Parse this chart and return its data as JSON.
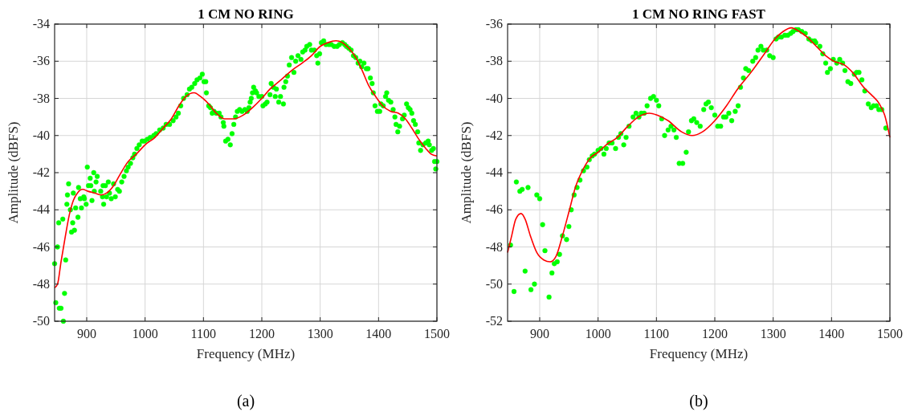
{
  "chart_data": [
    {
      "type": "scatter",
      "title": "1 CM NO RING",
      "xlabel": "Frequency (MHz)",
      "ylabel": "Amplitude (dBFS)",
      "annotations": [
        "(a)"
      ],
      "xlim": [
        845,
        1500
      ],
      "ylim": [
        -50,
        -34
      ],
      "xticks": [
        900,
        1000,
        1100,
        1200,
        1300,
        1400,
        1500
      ],
      "yticks": [
        -50,
        -48,
        -46,
        -44,
        -42,
        -40,
        -38,
        -36,
        -34
      ],
      "grid": true,
      "series": [
        {
          "type": "scatter",
          "marker": "circle",
          "color": "#00ff00",
          "x": [
            845,
            847,
            850,
            852,
            853,
            856,
            859,
            860,
            862,
            864,
            866,
            867,
            869,
            872,
            874,
            876,
            877,
            879,
            881,
            885,
            886,
            889,
            891,
            895,
            896,
            899,
            901,
            903,
            906,
            907,
            909,
            912,
            913,
            916,
            918,
            924,
            927,
            928,
            929,
            932,
            934,
            937,
            939,
            942,
            946,
            949,
            953,
            956,
            960,
            964,
            968,
            971,
            975,
            979,
            982,
            986,
            990,
            995,
            999,
            1004,
            1009,
            1015,
            1019,
            1025,
            1031,
            1036,
            1042,
            1048,
            1053,
            1057,
            1061,
            1066,
            1072,
            1076,
            1080,
            1085,
            1089,
            1094,
            1098,
            1101,
            1104,
            1105,
            1109,
            1112,
            1115,
            1118,
            1122,
            1127,
            1130,
            1134,
            1135,
            1138,
            1142,
            1146,
            1149,
            1152,
            1155,
            1158,
            1162,
            1166,
            1171,
            1175,
            1178,
            1180,
            1182,
            1184,
            1186,
            1189,
            1191,
            1195,
            1200,
            1202,
            1206,
            1209,
            1214,
            1216,
            1220,
            1223,
            1225,
            1229,
            1232,
            1237,
            1238,
            1241,
            1244,
            1247,
            1251,
            1255,
            1258,
            1262,
            1267,
            1270,
            1274,
            1277,
            1282,
            1285,
            1290,
            1294,
            1296,
            1299,
            1302,
            1306,
            1310,
            1315,
            1319,
            1324,
            1329,
            1333,
            1338,
            1342,
            1345,
            1349,
            1353,
            1357,
            1361,
            1365,
            1368,
            1371,
            1375,
            1379,
            1382,
            1386,
            1389,
            1391,
            1394,
            1398,
            1402,
            1404,
            1408,
            1412,
            1414,
            1417,
            1421,
            1425,
            1428,
            1430,
            1433,
            1436,
            1441,
            1444,
            1448,
            1451,
            1454,
            1457,
            1460,
            1463,
            1467,
            1469,
            1472,
            1476,
            1481,
            1485,
            1487,
            1491,
            1494,
            1496,
            1498,
            1500
          ],
          "values": [
            -46.9,
            -49.0,
            -46.0,
            -44.7,
            -49.3,
            -49.3,
            -44.5,
            -50.0,
            -48.5,
            -46.7,
            -43.7,
            -43.2,
            -42.6,
            -44.0,
            -45.2,
            -44.7,
            -43.1,
            -45.1,
            -43.9,
            -44.4,
            -42.8,
            -43.4,
            -43.9,
            -43.3,
            -43.4,
            -43.7,
            -41.7,
            -42.7,
            -42.3,
            -42.7,
            -43.5,
            -42.0,
            -43.0,
            -42.5,
            -42.2,
            -43.0,
            -43.3,
            -42.7,
            -43.7,
            -42.7,
            -43.3,
            -42.5,
            -43.1,
            -43.4,
            -42.6,
            -43.3,
            -42.9,
            -43.0,
            -42.5,
            -42.2,
            -41.9,
            -41.7,
            -41.5,
            -41.2,
            -41.0,
            -40.7,
            -40.5,
            -40.3,
            -40.3,
            -40.2,
            -40.1,
            -40.0,
            -39.9,
            -39.7,
            -39.6,
            -39.4,
            -39.4,
            -39.2,
            -39.0,
            -38.8,
            -38.4,
            -38.0,
            -37.8,
            -37.5,
            -37.4,
            -37.2,
            -37.0,
            -36.9,
            -36.7,
            -37.1,
            -37.1,
            -37.7,
            -38.4,
            -38.5,
            -38.8,
            -38.7,
            -38.8,
            -38.8,
            -39.0,
            -39.3,
            -39.5,
            -40.3,
            -40.2,
            -40.5,
            -39.9,
            -39.4,
            -39.0,
            -38.7,
            -38.6,
            -38.7,
            -38.6,
            -38.7,
            -38.5,
            -38.2,
            -38.0,
            -37.7,
            -37.4,
            -37.6,
            -37.7,
            -37.9,
            -37.9,
            -38.4,
            -38.3,
            -38.2,
            -37.8,
            -37.2,
            -37.4,
            -37.9,
            -37.5,
            -38.2,
            -37.9,
            -38.3,
            -37.4,
            -37.1,
            -36.8,
            -36.2,
            -35.8,
            -36.6,
            -36.0,
            -35.7,
            -35.9,
            -35.5,
            -35.4,
            -35.2,
            -35.1,
            -35.4,
            -35.4,
            -35.7,
            -36.1,
            -35.6,
            -35.0,
            -34.9,
            -35.1,
            -35.1,
            -35.1,
            -35.2,
            -35.2,
            -35.1,
            -35.0,
            -35.1,
            -35.2,
            -35.3,
            -35.4,
            -35.7,
            -35.8,
            -36.1,
            -36.0,
            -36.3,
            -36.1,
            -36.4,
            -36.4,
            -36.9,
            -37.2,
            -37.7,
            -38.4,
            -38.7,
            -38.7,
            -38.3,
            -38.4,
            -37.9,
            -37.7,
            -38.1,
            -38.2,
            -38.6,
            -39.0,
            -39.4,
            -39.8,
            -39.5,
            -39.1,
            -38.9,
            -38.3,
            -38.5,
            -38.6,
            -38.8,
            -39.2,
            -39.4,
            -39.8,
            -40.4,
            -40.8,
            -40.5,
            -40.4,
            -40.3,
            -40.5,
            -40.8,
            -40.7,
            -41.4,
            -41.8,
            -41.4
          ]
        },
        {
          "type": "line",
          "color": "#ff0000",
          "x": [
            845,
            850,
            856,
            863,
            870,
            877,
            884,
            893,
            902,
            914,
            925,
            934,
            946,
            957,
            971,
            985,
            1000,
            1017,
            1031,
            1045,
            1058,
            1070,
            1084,
            1095,
            1109,
            1122,
            1136,
            1152,
            1168,
            1184,
            1200,
            1214,
            1233,
            1251,
            1269,
            1285,
            1300,
            1313,
            1327,
            1338,
            1349,
            1361,
            1372,
            1383,
            1395,
            1407,
            1421,
            1434,
            1446,
            1457,
            1469,
            1481,
            1490,
            1500
          ],
          "values": [
            -48.2,
            -48.0,
            -46.8,
            -45.5,
            -44.3,
            -43.5,
            -43.1,
            -42.9,
            -43.0,
            -43.1,
            -43.2,
            -43.1,
            -42.7,
            -42.1,
            -41.4,
            -41.0,
            -40.5,
            -40.1,
            -39.6,
            -39.1,
            -38.4,
            -37.9,
            -37.7,
            -37.9,
            -38.3,
            -38.8,
            -39.1,
            -39.1,
            -38.9,
            -38.5,
            -38.0,
            -37.5,
            -37.0,
            -36.5,
            -36.1,
            -35.7,
            -35.2,
            -35.0,
            -34.9,
            -35.0,
            -35.3,
            -35.8,
            -36.5,
            -37.3,
            -37.9,
            -38.4,
            -38.7,
            -38.8,
            -39.1,
            -39.6,
            -40.2,
            -40.7,
            -41.0,
            -41.1
          ]
        }
      ]
    },
    {
      "type": "scatter",
      "title": "1 CM NO RING FAST",
      "xlabel": "Frequency (MHz)",
      "ylabel": "Amplitude (dBFS)",
      "annotations": [
        "(b)"
      ],
      "xlim": [
        845,
        1500
      ],
      "ylim": [
        -52,
        -36
      ],
      "xticks": [
        900,
        1000,
        1100,
        1200,
        1300,
        1400,
        1500
      ],
      "yticks": [
        -52,
        -50,
        -48,
        -46,
        -44,
        -42,
        -40,
        -38,
        -36
      ],
      "grid": true,
      "series": [
        {
          "type": "scatter",
          "marker": "circle",
          "color": "#00ff00",
          "x": [
            850,
            856,
            860,
            866,
            870,
            875,
            880,
            885,
            891,
            895,
            900,
            905,
            909,
            916,
            921,
            925,
            930,
            934,
            939,
            946,
            950,
            954,
            959,
            964,
            969,
            975,
            981,
            985,
            990,
            994,
            1000,
            1005,
            1010,
            1014,
            1019,
            1024,
            1030,
            1035,
            1039,
            1044,
            1048,
            1053,
            1060,
            1065,
            1070,
            1074,
            1079,
            1084,
            1090,
            1095,
            1100,
            1104,
            1109,
            1114,
            1120,
            1125,
            1130,
            1134,
            1139,
            1145,
            1151,
            1155,
            1160,
            1164,
            1169,
            1175,
            1181,
            1185,
            1189,
            1194,
            1200,
            1205,
            1210,
            1215,
            1219,
            1224,
            1229,
            1235,
            1240,
            1244,
            1249,
            1253,
            1258,
            1265,
            1270,
            1274,
            1279,
            1283,
            1289,
            1294,
            1300,
            1305,
            1309,
            1314,
            1320,
            1325,
            1330,
            1334,
            1339,
            1343,
            1349,
            1355,
            1361,
            1366,
            1371,
            1373,
            1380,
            1385,
            1390,
            1393,
            1398,
            1403,
            1409,
            1414,
            1419,
            1423,
            1428,
            1433,
            1439,
            1443,
            1447,
            1452,
            1457,
            1463,
            1468,
            1472,
            1477,
            1481,
            1486,
            1493
          ],
          "values": [
            -47.9,
            -50.4,
            -44.5,
            -45.0,
            -44.9,
            -49.3,
            -44.8,
            -50.3,
            -50.0,
            -45.2,
            -45.4,
            -46.8,
            -48.2,
            -50.7,
            -49.4,
            -48.9,
            -48.8,
            -48.4,
            -47.4,
            -47.6,
            -46.9,
            -46.0,
            -45.2,
            -44.8,
            -44.4,
            -43.9,
            -43.7,
            -43.3,
            -43.1,
            -43.0,
            -42.8,
            -42.7,
            -43.0,
            -42.7,
            -42.4,
            -42.4,
            -42.7,
            -42.1,
            -41.9,
            -42.5,
            -42.1,
            -41.5,
            -41.0,
            -40.8,
            -41.0,
            -40.8,
            -40.8,
            -40.4,
            -40.0,
            -39.9,
            -40.1,
            -40.4,
            -41.1,
            -42.0,
            -41.7,
            -41.5,
            -41.7,
            -42.1,
            -43.5,
            -43.5,
            -42.9,
            -41.8,
            -41.2,
            -41.1,
            -41.3,
            -41.5,
            -40.6,
            -40.3,
            -40.2,
            -40.5,
            -40.9,
            -41.5,
            -41.5,
            -41.0,
            -41.0,
            -40.8,
            -41.2,
            -40.7,
            -40.4,
            -39.4,
            -38.9,
            -38.4,
            -38.5,
            -38.0,
            -37.8,
            -37.4,
            -37.2,
            -37.4,
            -37.4,
            -37.7,
            -37.8,
            -36.8,
            -36.7,
            -36.7,
            -36.6,
            -36.6,
            -36.5,
            -36.4,
            -36.3,
            -36.3,
            -36.4,
            -36.5,
            -36.8,
            -36.9,
            -36.9,
            -37.0,
            -37.2,
            -37.6,
            -38.1,
            -38.6,
            -38.4,
            -37.9,
            -38.1,
            -37.9,
            -38.1,
            -38.5,
            -39.1,
            -39.2,
            -38.7,
            -38.6,
            -38.6,
            -39.0,
            -39.6,
            -40.3,
            -40.5,
            -40.4,
            -40.4,
            -40.6,
            -40.6,
            -41.6
          ]
        },
        {
          "type": "line",
          "color": "#ff0000",
          "x": [
            845,
            852,
            859,
            868,
            875,
            884,
            895,
            907,
            918,
            928,
            939,
            951,
            962,
            973,
            987,
            1000,
            1014,
            1033,
            1051,
            1069,
            1088,
            1101,
            1120,
            1143,
            1161,
            1179,
            1200,
            1220,
            1239,
            1262,
            1285,
            1303,
            1317,
            1331,
            1345,
            1358,
            1374,
            1390,
            1404,
            1422,
            1436,
            1455,
            1468,
            1482,
            1491,
            1500
          ],
          "values": [
            -48.3,
            -47.4,
            -46.5,
            -46.2,
            -46.5,
            -47.4,
            -48.3,
            -48.7,
            -48.8,
            -48.5,
            -47.4,
            -46.0,
            -44.7,
            -43.9,
            -43.2,
            -42.9,
            -42.5,
            -42.1,
            -41.5,
            -41.0,
            -40.8,
            -40.9,
            -41.2,
            -41.8,
            -42.0,
            -41.8,
            -41.2,
            -40.4,
            -39.5,
            -38.6,
            -37.6,
            -36.8,
            -36.4,
            -36.2,
            -36.4,
            -36.7,
            -37.2,
            -37.7,
            -38.0,
            -38.2,
            -38.6,
            -39.4,
            -39.8,
            -40.3,
            -40.9,
            -42.1
          ]
        }
      ]
    }
  ]
}
